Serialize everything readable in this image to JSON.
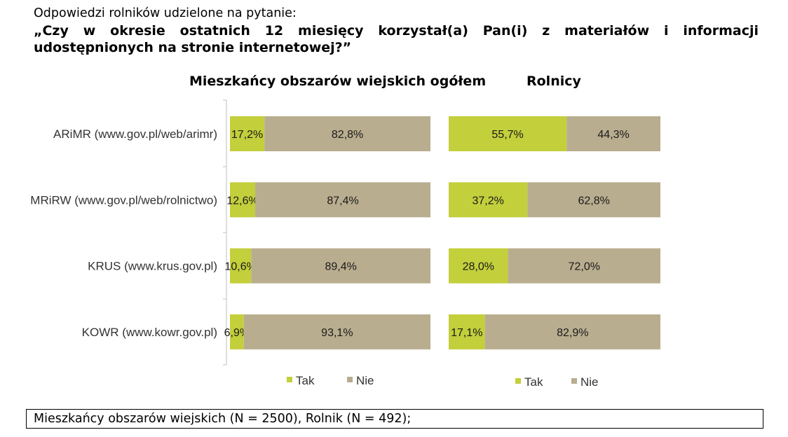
{
  "intro": "Odpowiedzi rolników udzielone na pytanie:",
  "question": "„Czy w okresie ostatnich 12 miesięcy korzystał(a) Pan(i) z materiałów i informacji udostępnionych na stronie internetowej?”",
  "footnote": "Mieszkańcy obszarów wiejskich (N = 2500), Rolnik (N = 492);",
  "colors": {
    "tak": "#c3cf3b",
    "nie": "#b9ad8f"
  },
  "chart_data": [
    {
      "type": "bar",
      "orientation": "horizontal",
      "stacked": true,
      "title": "Mieszkańcy obszarów wiejskich ogółem",
      "categories": [
        "ARiMR (www.gov.pl/web/arimr)",
        "MRiRW (www.gov.pl/web/rolnictwo)",
        "KRUS (www.krus.gov.pl)",
        "KOWR (www.kowr.gov.pl)"
      ],
      "series": [
        {
          "name": "Tak",
          "values": [
            17.2,
            12.6,
            10.6,
            6.9
          ],
          "labels": [
            "17,2%",
            "12,6%",
            "10,6%",
            "6,9%"
          ]
        },
        {
          "name": "Nie",
          "values": [
            82.8,
            87.4,
            89.4,
            93.1
          ],
          "labels": [
            "82,8%",
            "87,4%",
            "89,4%",
            "93,1%"
          ]
        }
      ],
      "xlim": [
        0,
        100
      ],
      "legend": "bottom"
    },
    {
      "type": "bar",
      "orientation": "horizontal",
      "stacked": true,
      "title": "Rolnicy",
      "categories": [
        "ARiMR (www.gov.pl/web/arimr)",
        "MRiRW (www.gov.pl/web/rolnictwo)",
        "KRUS (www.krus.gov.pl)",
        "KOWR (www.kowr.gov.pl)"
      ],
      "series": [
        {
          "name": "Tak",
          "values": [
            55.7,
            37.2,
            28.0,
            17.1
          ],
          "labels": [
            "55,7%",
            "37,2%",
            "28,0%",
            "17,1%"
          ]
        },
        {
          "name": "Nie",
          "values": [
            44.3,
            62.8,
            72.0,
            82.9
          ],
          "labels": [
            "44,3%",
            "62,8%",
            "72,0%",
            "82,9%"
          ]
        }
      ],
      "xlim": [
        0,
        100
      ],
      "legend": "bottom"
    }
  ]
}
